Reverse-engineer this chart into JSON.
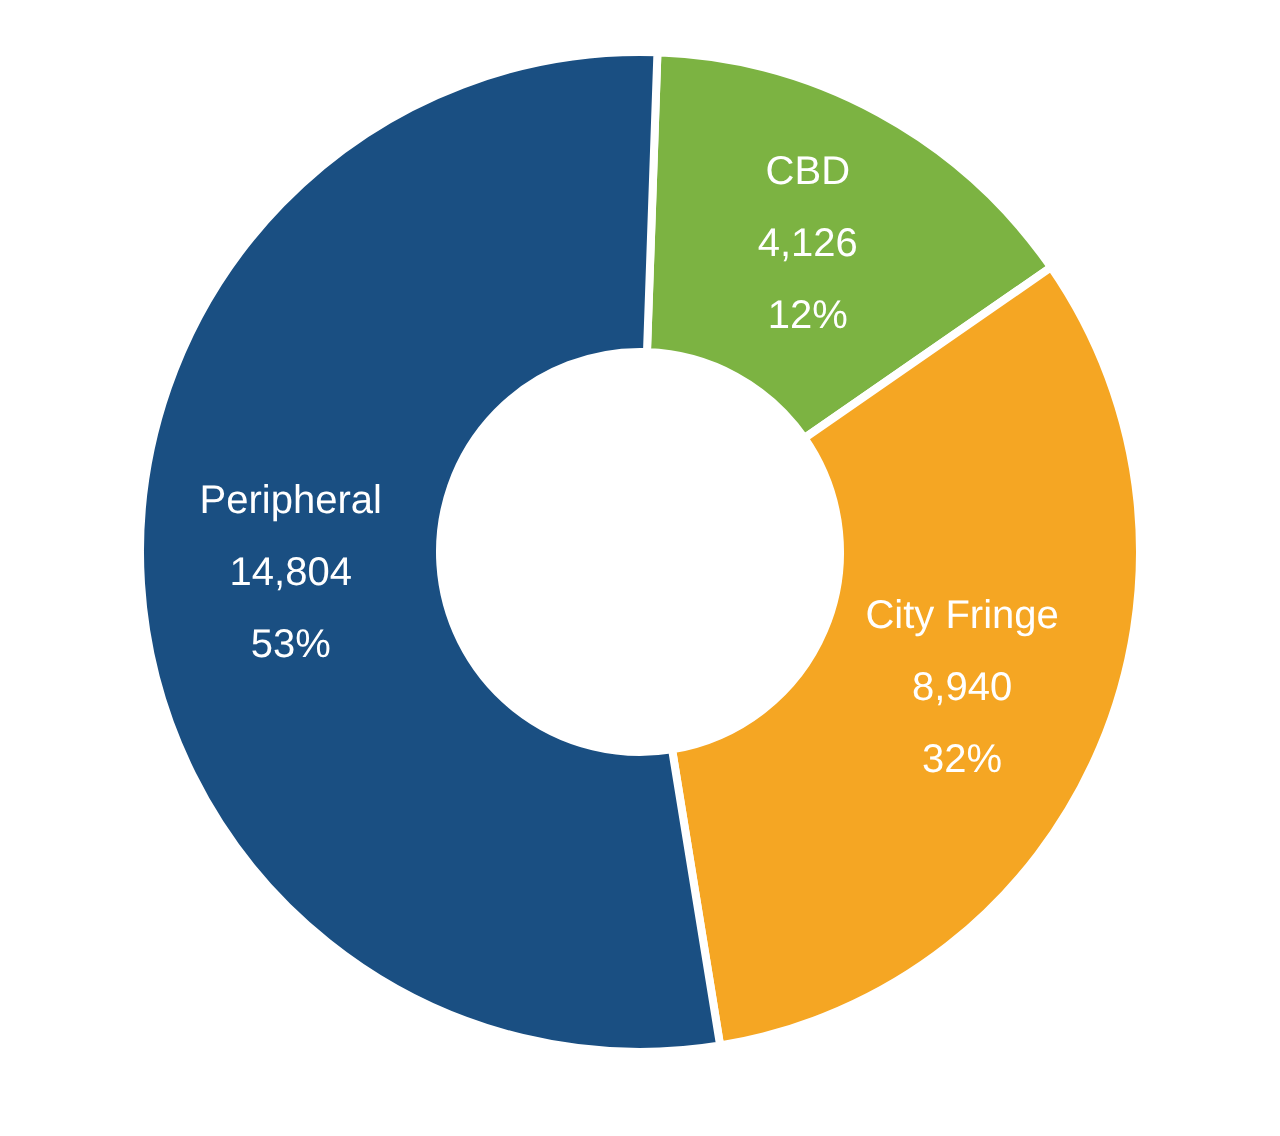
{
  "chart_data": {
    "type": "donut",
    "categories": [
      "CBD",
      "City Fringe",
      "Peripheral"
    ],
    "values": [
      4126,
      8940,
      14804
    ],
    "colors": [
      "#7cb342",
      "#f5a623",
      "#1a4f82"
    ],
    "value_labels": [
      "4,126\n12%",
      "8,940\n32%",
      "14,804\n53%"
    ],
    "legend": false
  }
}
